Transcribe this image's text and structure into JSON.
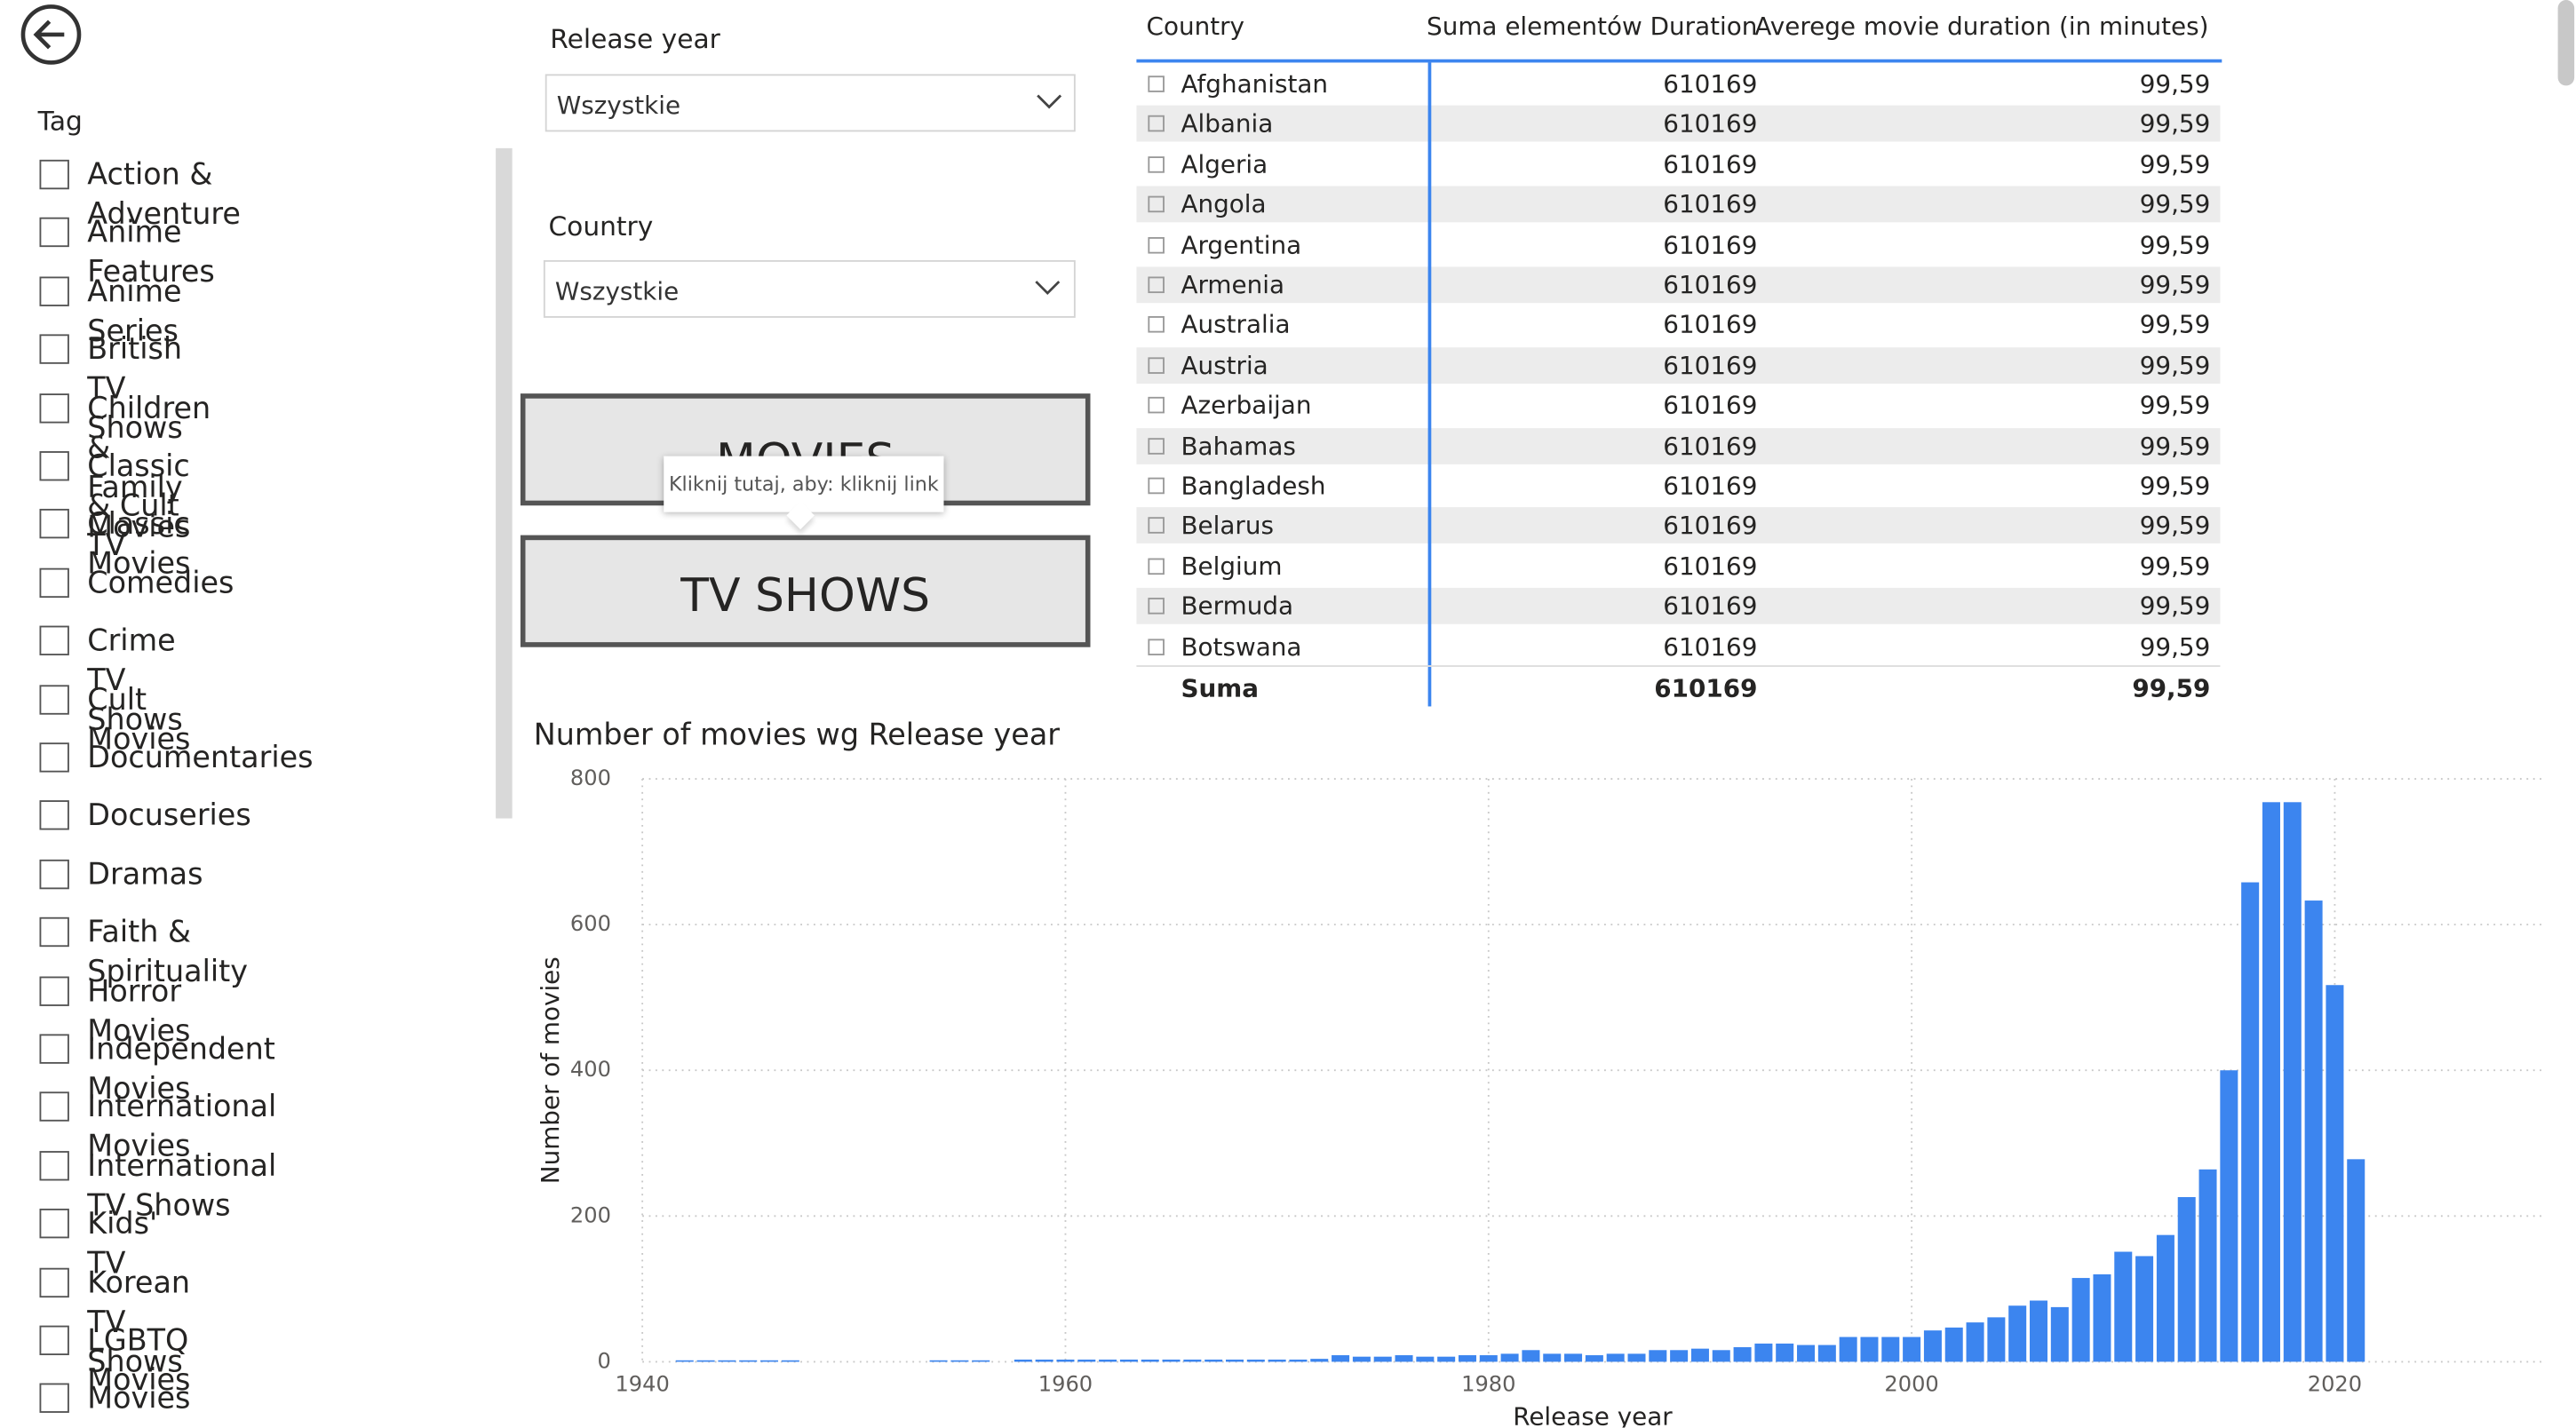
{
  "slicers": [
    {
      "label": "Release year",
      "value": "Wszystkie"
    },
    {
      "label": "Country",
      "value": "Wszystkie"
    }
  ],
  "tag_filter": {
    "title": "Tag",
    "items": [
      "Action & Adventure",
      "Anime Features",
      "Anime Series",
      "British TV Shows",
      "Children & Family Movies",
      "Classic & Cult TV",
      "Classic Movies",
      "Comedies",
      "Crime TV Shows",
      "Cult Movies",
      "Documentaries",
      "Docuseries",
      "Dramas",
      "Faith & Spirituality",
      "Horror Movies",
      "Independent Movies",
      "International Movies",
      "International TV Shows",
      "Kids' TV",
      "Korean TV Shows",
      "LGBTQ Movies",
      "Movies"
    ]
  },
  "buttons": [
    "MOVIES",
    "TV SHOWS"
  ],
  "tooltip": "Kliknij tutaj, aby: kliknij link",
  "table": {
    "columns": [
      "Country",
      "Suma elementów Duration",
      "Averege movie duration (in minutes)"
    ],
    "rows": [
      [
        "Afghanistan",
        610169,
        "99,59"
      ],
      [
        "Albania",
        610169,
        "99,59"
      ],
      [
        "Algeria",
        610169,
        "99,59"
      ],
      [
        "Angola",
        610169,
        "99,59"
      ],
      [
        "Argentina",
        610169,
        "99,59"
      ],
      [
        "Armenia",
        610169,
        "99,59"
      ],
      [
        "Australia",
        610169,
        "99,59"
      ],
      [
        "Austria",
        610169,
        "99,59"
      ],
      [
        "Azerbaijan",
        610169,
        "99,59"
      ],
      [
        "Bahamas",
        610169,
        "99,59"
      ],
      [
        "Bangladesh",
        610169,
        "99,59"
      ],
      [
        "Belarus",
        610169,
        "99,59"
      ],
      [
        "Belgium",
        610169,
        "99,59"
      ],
      [
        "Bermuda",
        610169,
        "99,59"
      ],
      [
        "Botswana",
        610169,
        "99,59"
      ]
    ],
    "total": [
      "Suma",
      610169,
      "99,59"
    ]
  },
  "chart_data": {
    "type": "bar",
    "title": "Number of movies wg Release year",
    "x_label": "Release year",
    "y_label": "Number of movies",
    "color": "#3c85ef",
    "x": [
      1942,
      1943,
      1944,
      1945,
      1946,
      1947,
      1954,
      1955,
      1956,
      1958,
      1959,
      1960,
      1961,
      1962,
      1963,
      1964,
      1965,
      1966,
      1967,
      1968,
      1969,
      1970,
      1971,
      1972,
      1973,
      1974,
      1975,
      1976,
      1977,
      1978,
      1979,
      1980,
      1981,
      1982,
      1983,
      1984,
      1985,
      1986,
      1987,
      1988,
      1989,
      1990,
      1991,
      1992,
      1993,
      1994,
      1995,
      1996,
      1997,
      1998,
      1999,
      2000,
      2001,
      2002,
      2003,
      2004,
      2005,
      2006,
      2007,
      2008,
      2009,
      2010,
      2011,
      2012,
      2013,
      2014,
      2015,
      2016,
      2017,
      2018,
      2019,
      2020,
      2021
    ],
    "values": [
      2,
      2,
      2,
      2,
      2,
      2,
      2,
      2,
      2,
      3,
      3,
      3,
      3,
      3,
      3,
      3,
      3,
      3,
      3,
      3,
      3,
      3,
      3,
      4,
      9,
      7,
      7,
      9,
      7,
      7,
      9,
      9,
      11,
      16,
      11,
      11,
      9,
      11,
      11,
      16,
      16,
      18,
      16,
      20,
      25,
      25,
      23,
      23,
      34,
      34,
      34,
      34,
      43,
      47,
      54,
      61,
      77,
      84,
      75,
      115,
      120,
      151,
      145,
      174,
      226,
      264,
      400,
      658,
      768,
      768,
      633,
      517,
      278
    ],
    "xlim": [
      1940,
      2030
    ],
    "xticks": [
      1940,
      1960,
      1980,
      2000,
      2020
    ],
    "ylim": [
      0,
      800
    ],
    "yticks": [
      0,
      200,
      400,
      600,
      800
    ],
    "grid": true
  }
}
